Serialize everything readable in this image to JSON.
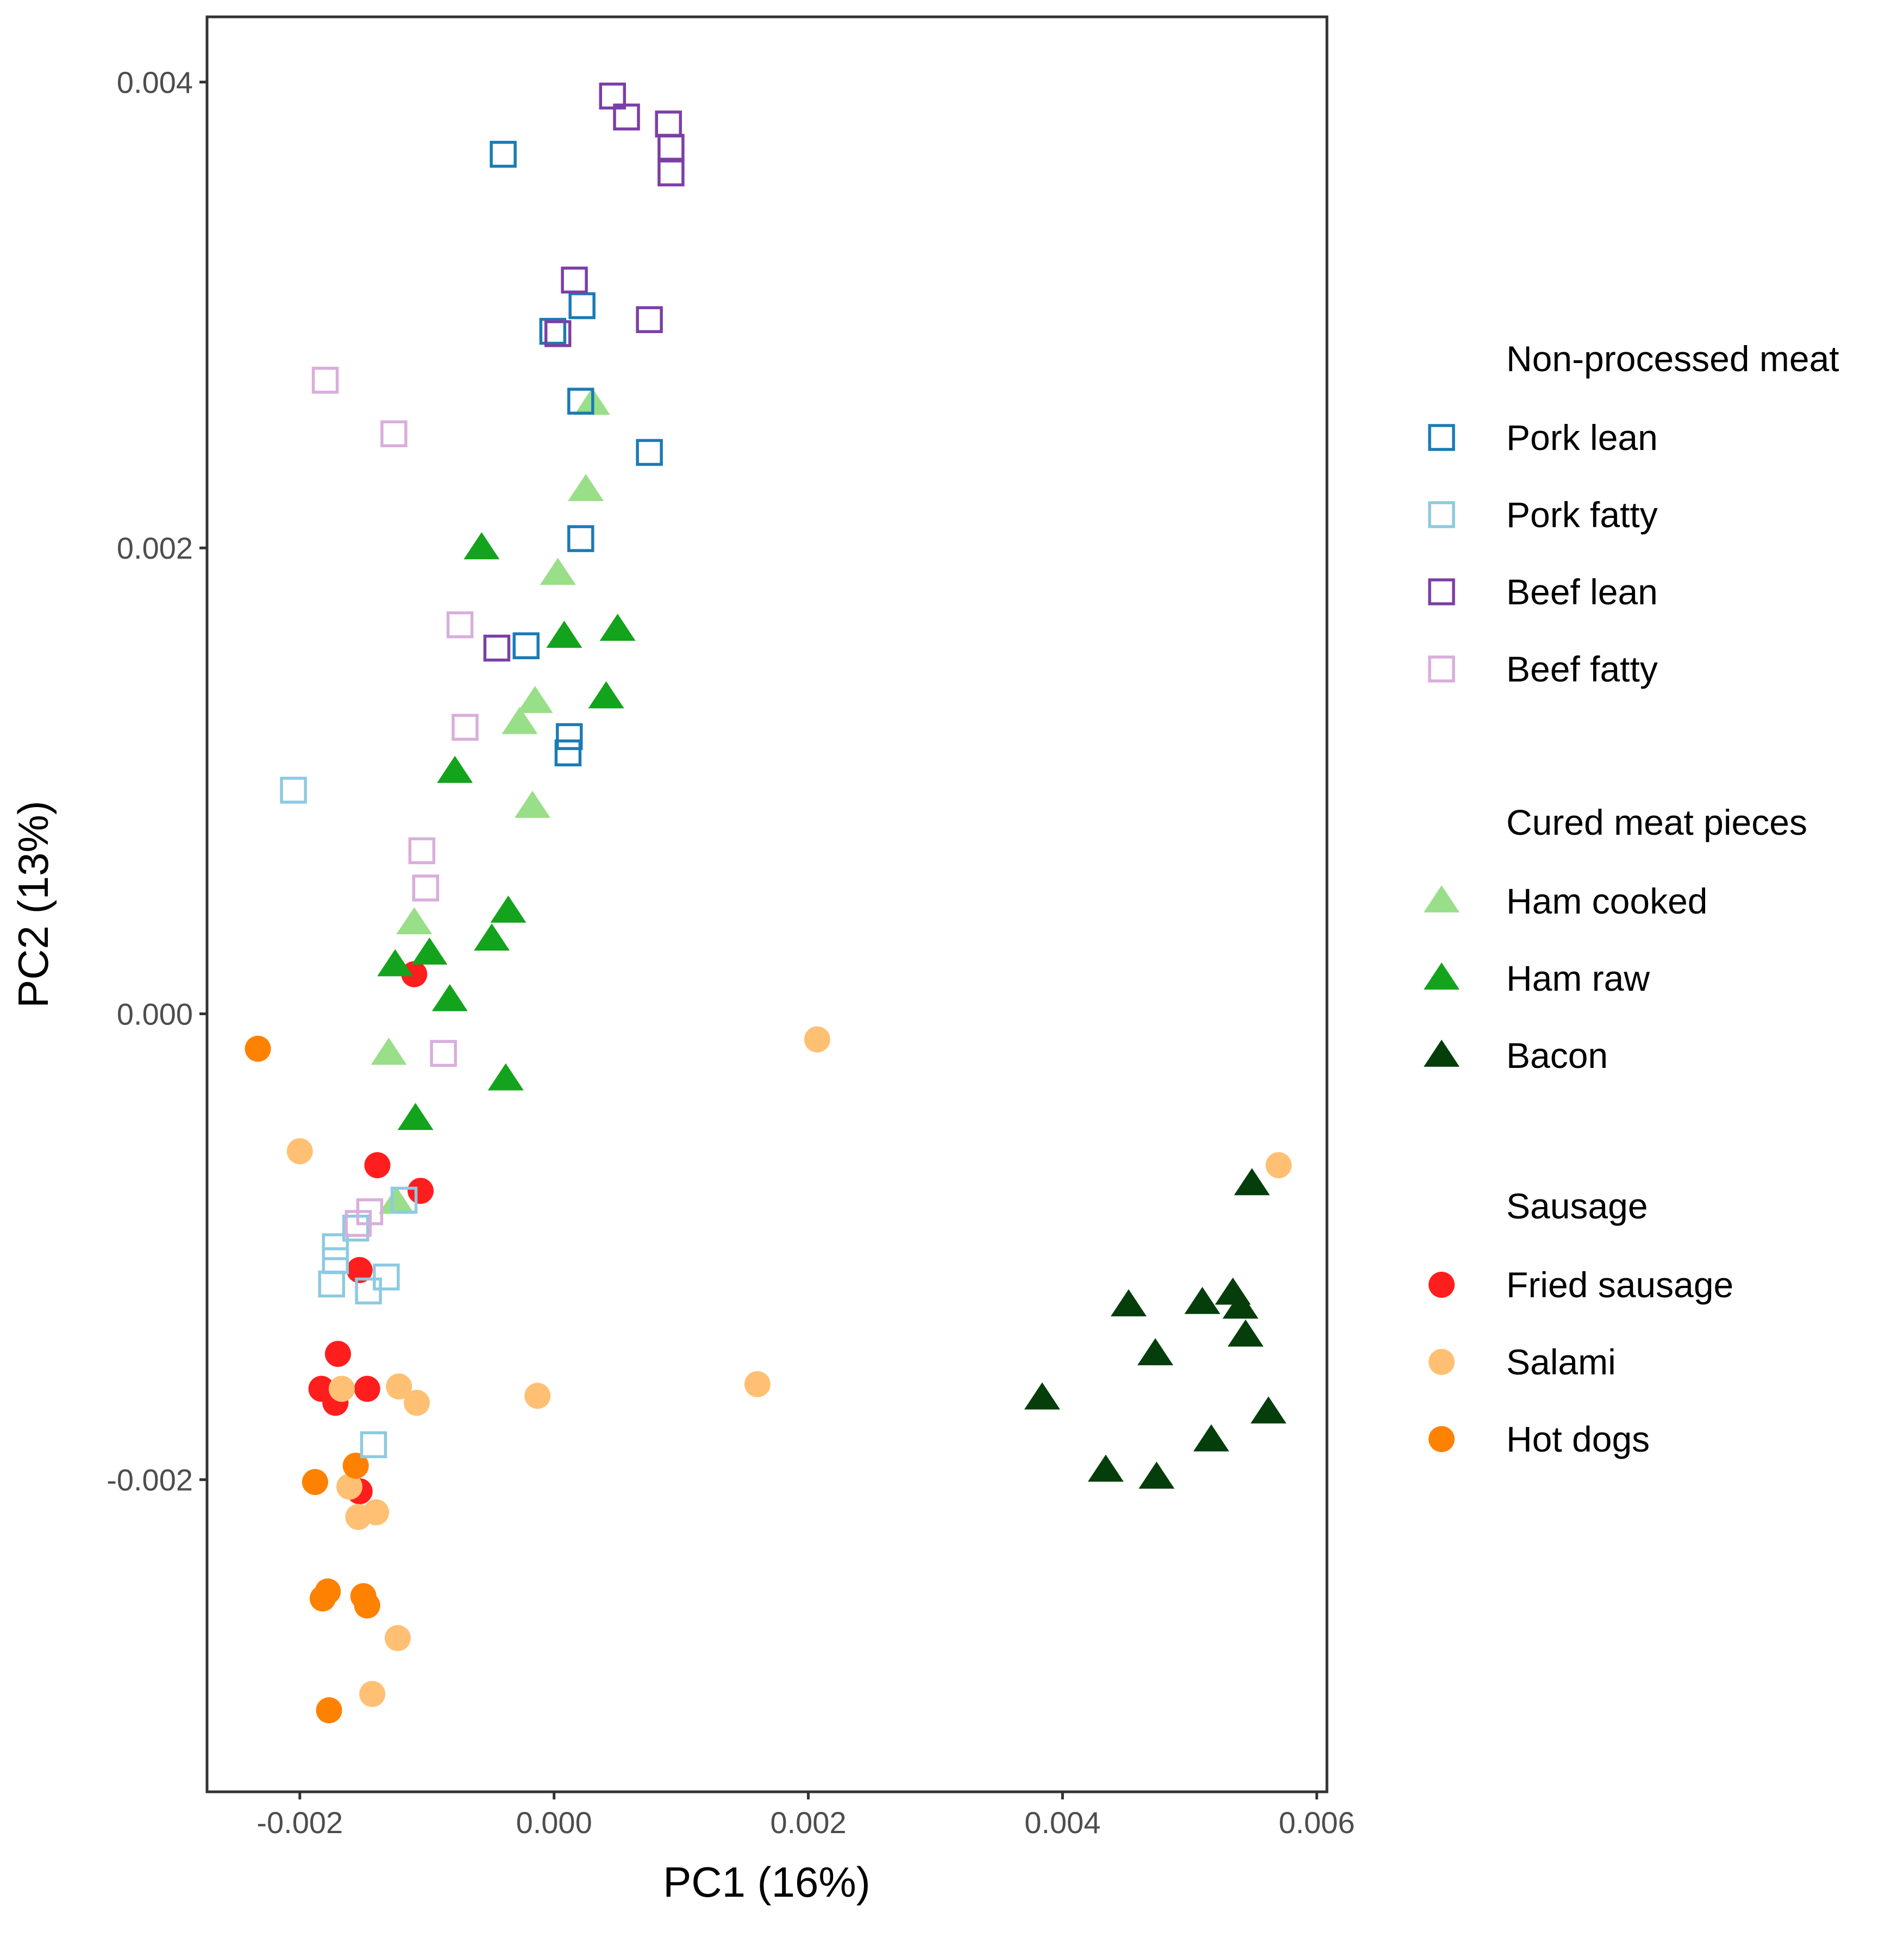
{
  "chart_data": {
    "type": "scatter",
    "title": "",
    "xlabel": "PC1 (16%)",
    "ylabel": "PC2 (13%)",
    "xlim": [
      -0.00273,
      0.00608
    ],
    "ylim": [
      -0.00334,
      0.00428
    ],
    "x_ticks": [
      -0.002,
      0.0,
      0.002,
      0.004,
      0.006
    ],
    "x_tick_labels": [
      "-0.002",
      "0.000",
      "0.002",
      "0.004",
      "0.006"
    ],
    "y_ticks": [
      -0.002,
      0.0,
      0.002,
      0.004
    ],
    "y_tick_labels": [
      "-0.002",
      "0.000",
      "0.002",
      "0.004"
    ],
    "grid": false,
    "legend_position": "right",
    "legend_groups": [
      {
        "title": "Non-processed meat",
        "items": [
          "Pork lean",
          "Pork fatty",
          "Beef lean",
          "Beef fatty"
        ]
      },
      {
        "title": "Cured meat pieces",
        "items": [
          "Ham cooked",
          "Ham raw",
          "Bacon"
        ]
      },
      {
        "title": "Sausage",
        "items": [
          "Fried sausage",
          "Salami",
          "Hot dogs"
        ]
      }
    ],
    "series": [
      {
        "name": "Pork lean",
        "shape": "square-open",
        "color": "#1b7bb5",
        "points": [
          [
            -0.0004,
            0.00369
          ],
          [
            0.00022,
            0.00304
          ],
          [
            -1e-05,
            0.00293
          ],
          [
            0.00021,
            0.00263
          ],
          [
            0.00075,
            0.00241
          ],
          [
            0.00021,
            0.00204
          ],
          [
            -0.00022,
            0.00158
          ],
          [
            0.00012,
            0.00119
          ],
          [
            0.00011,
            0.00112
          ]
        ]
      },
      {
        "name": "Pork fatty",
        "shape": "square-open",
        "color": "#8ecae0",
        "points": [
          [
            -0.00205,
            0.00096
          ],
          [
            -0.00118,
            -0.0008
          ],
          [
            -0.00156,
            -0.00092
          ],
          [
            -0.00172,
            -0.001
          ],
          [
            -0.00172,
            -0.00106
          ],
          [
            -0.00132,
            -0.00113
          ],
          [
            -0.00175,
            -0.00116
          ],
          [
            -0.00146,
            -0.00119
          ],
          [
            -0.00142,
            -0.00185
          ]
        ]
      },
      {
        "name": "Beef lean",
        "shape": "square-open",
        "color": "#7b3fa6",
        "points": [
          [
            0.00046,
            0.00394
          ],
          [
            0.00057,
            0.00385
          ],
          [
            0.0009,
            0.00382
          ],
          [
            0.00092,
            0.00372
          ],
          [
            0.00092,
            0.00361
          ],
          [
            0.00016,
            0.00315
          ],
          [
            0.00075,
            0.00298
          ],
          [
            3e-05,
            0.00292
          ],
          [
            -0.00045,
            0.00157
          ]
        ]
      },
      {
        "name": "Beef fatty",
        "shape": "square-open",
        "color": "#d9aedb",
        "points": [
          [
            -0.0018,
            0.00272
          ],
          [
            -0.00126,
            0.00249
          ],
          [
            -0.00074,
            0.00167
          ],
          [
            -0.0007,
            0.00123
          ],
          [
            -0.00104,
            0.0007
          ],
          [
            -0.00101,
            0.00054
          ],
          [
            -0.00087,
            -0.00017
          ],
          [
            -0.00145,
            -0.00085
          ],
          [
            -0.00154,
            -0.0009
          ]
        ]
      },
      {
        "name": "Ham cooked",
        "shape": "triangle",
        "color": "#99de88",
        "points": [
          [
            0.0003,
            0.00262
          ],
          [
            0.00025,
            0.00225
          ],
          [
            3e-05,
            0.00189
          ],
          [
            -0.00015,
            0.00134
          ],
          [
            -0.00027,
            0.00125
          ],
          [
            -0.00017,
            0.00089
          ],
          [
            -0.0011,
            0.00039
          ],
          [
            -0.0013,
            -0.00017
          ],
          [
            -0.00124,
            -0.00081
          ]
        ]
      },
      {
        "name": "Ham raw",
        "shape": "triangle",
        "color": "#13a31c",
        "points": [
          [
            -0.00057,
            0.002
          ],
          [
            8e-05,
            0.00162
          ],
          [
            0.0005,
            0.00165
          ],
          [
            0.00041,
            0.00136
          ],
          [
            -0.00078,
            0.00104
          ],
          [
            -0.00036,
            0.00044
          ],
          [
            -0.00049,
            0.00032
          ],
          [
            -0.00098,
            0.00026
          ],
          [
            -0.00125,
            0.00021
          ],
          [
            -0.00082,
            6e-05
          ],
          [
            -0.00038,
            -0.00028
          ],
          [
            -0.00109,
            -0.00045
          ]
        ]
      },
      {
        "name": "Bacon",
        "shape": "triangle",
        "color": "#063e0b",
        "points": [
          [
            0.00549,
            -0.00073
          ],
          [
            0.00452,
            -0.00125
          ],
          [
            0.0051,
            -0.00124
          ],
          [
            0.00534,
            -0.0012
          ],
          [
            0.0054,
            -0.00126
          ],
          [
            0.00544,
            -0.00138
          ],
          [
            0.00473,
            -0.00146
          ],
          [
            0.00384,
            -0.00165
          ],
          [
            0.00562,
            -0.00171
          ],
          [
            0.00517,
            -0.00183
          ],
          [
            0.00434,
            -0.00196
          ],
          [
            0.00474,
            -0.00199
          ]
        ]
      },
      {
        "name": "Fried sausage",
        "shape": "circle",
        "color": "#ff1e1e",
        "points": [
          [
            -0.0011,
            0.00017
          ],
          [
            -0.00139,
            -0.00065
          ],
          [
            -0.00105,
            -0.00076
          ],
          [
            -0.00153,
            -0.0011
          ],
          [
            -0.0017,
            -0.00146
          ],
          [
            -0.00183,
            -0.00161
          ],
          [
            -0.00172,
            -0.00167
          ],
          [
            -0.00147,
            -0.00161
          ],
          [
            -0.00153,
            -0.00205
          ]
        ]
      },
      {
        "name": "Salami",
        "shape": "circle",
        "color": "#ffc073",
        "points": [
          [
            0.00207,
            -0.00011
          ],
          [
            -0.002,
            -0.00059
          ],
          [
            0.0057,
            -0.00065
          ],
          [
            0.0016,
            -0.00159
          ],
          [
            -0.00013,
            -0.00164
          ],
          [
            -0.00122,
            -0.0016
          ],
          [
            -0.00108,
            -0.00167
          ],
          [
            -0.00167,
            -0.00161
          ],
          [
            -0.00161,
            -0.00203
          ],
          [
            -0.00154,
            -0.00216
          ],
          [
            -0.0014,
            -0.00214
          ],
          [
            -0.00123,
            -0.00268
          ],
          [
            -0.00143,
            -0.00292
          ]
        ]
      },
      {
        "name": "Hot dogs",
        "shape": "circle",
        "color": "#ff8100",
        "points": [
          [
            -0.00233,
            -0.00015
          ],
          [
            -0.00156,
            -0.00194
          ],
          [
            -0.00188,
            -0.00201
          ],
          [
            -0.00178,
            -0.00248
          ],
          [
            -0.00182,
            -0.00251
          ],
          [
            -0.0015,
            -0.0025
          ],
          [
            -0.00147,
            -0.00254
          ],
          [
            -0.00177,
            -0.00299
          ]
        ]
      }
    ]
  }
}
